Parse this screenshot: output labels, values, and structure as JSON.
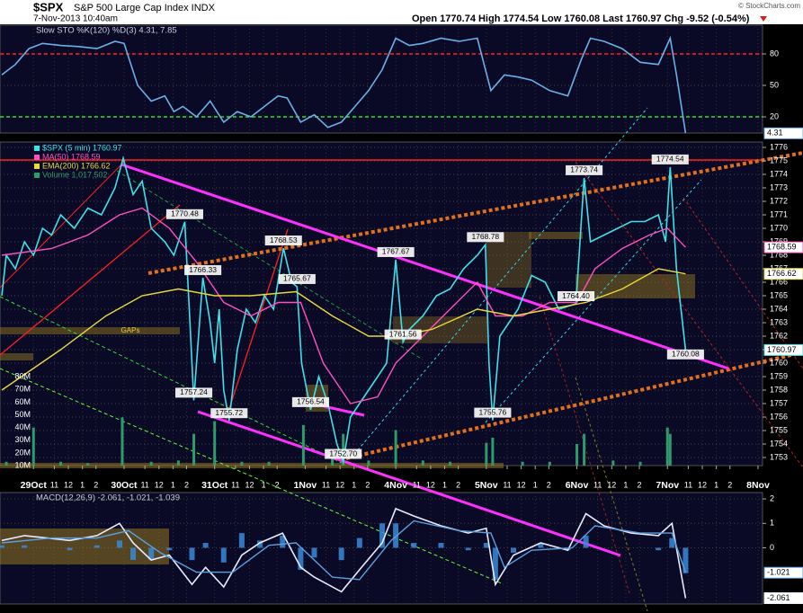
{
  "header": {
    "symbol": "$SPX",
    "name": "S&P 500 Large Cap Index INDX",
    "date": "7-Nov-2013 10:40am",
    "quote": "Open 1770.74  High 1774.54  Low 1760.08  Last 1760.97  Chg -9.52 (-0.54%)",
    "credit": "© StockCharts.com"
  },
  "chart_data": [
    {
      "type": "line",
      "legend": "Slow STO %K(120) %D(3) 4.31, 7.85",
      "xlim": [
        -0.37,
        8.05
      ],
      "ylim": [
        4.6,
        107.4
      ],
      "yticks": [
        20,
        50,
        80
      ],
      "grid": true,
      "hlines": [
        {
          "value": 80,
          "color": "#ff2020"
        },
        {
          "value": 20,
          "color": "#30e030"
        }
      ],
      "series": [
        {
          "color": "#6ab0e8",
          "x": [
            -0.35,
            -0.2,
            -0.05,
            0.1,
            0.3,
            0.5,
            0.7,
            0.9,
            1.0,
            1.15,
            1.3,
            1.45,
            1.55,
            1.65,
            1.8,
            1.95,
            2.1,
            2.25,
            2.4,
            2.55,
            2.7,
            2.8,
            2.95,
            3.1,
            3.25,
            3.4,
            3.55,
            3.7,
            3.85,
            4.0,
            4.15,
            4.3,
            4.5,
            4.7,
            4.9,
            5.05,
            5.2,
            5.35,
            5.5,
            5.7,
            5.9,
            6.05,
            6.15,
            6.3,
            6.5,
            6.7,
            6.9,
            7.03,
            7.1,
            7.2
          ],
          "values": [
            60,
            70,
            85,
            90,
            88,
            87,
            85,
            92,
            90,
            50,
            35,
            40,
            25,
            30,
            20,
            35,
            15,
            25,
            20,
            30,
            40,
            38,
            15,
            22,
            10,
            15,
            30,
            45,
            65,
            95,
            88,
            90,
            95,
            92,
            95,
            45,
            60,
            58,
            55,
            45,
            40,
            75,
            95,
            92,
            85,
            72,
            70,
            95,
            60,
            4.31
          ]
        }
      ]
    },
    {
      "type": "line",
      "xlim": [
        -0.37,
        8.05
      ],
      "ylim": [
        1752.4,
        1776.4
      ],
      "yticks": [
        1753,
        1754,
        1755,
        1756,
        1757,
        1758,
        1759,
        1760,
        1761,
        1762,
        1763,
        1764,
        1765,
        1766,
        1767,
        1768,
        1769,
        1770,
        1771,
        1772,
        1773,
        1774,
        1775,
        1776
      ],
      "grid": true,
      "xticks": [
        {
          "value": 0,
          "label": "29Oct"
        },
        {
          "value": 0.23,
          "label": "11"
        },
        {
          "value": 0.385,
          "label": "12"
        },
        {
          "value": 0.54,
          "label": "1"
        },
        {
          "value": 0.69,
          "label": "2"
        },
        {
          "value": 1,
          "label": "30Oct"
        },
        {
          "value": 1.23,
          "label": "11"
        },
        {
          "value": 1.385,
          "label": "12"
        },
        {
          "value": 1.54,
          "label": "1"
        },
        {
          "value": 1.69,
          "label": "2"
        },
        {
          "value": 2,
          "label": "31Oct"
        },
        {
          "value": 2.23,
          "label": "11"
        },
        {
          "value": 2.385,
          "label": "12"
        },
        {
          "value": 2.54,
          "label": "1"
        },
        {
          "value": 2.69,
          "label": "2"
        },
        {
          "value": 3,
          "label": "1Nov"
        },
        {
          "value": 3.23,
          "label": "11"
        },
        {
          "value": 3.385,
          "label": "12"
        },
        {
          "value": 3.54,
          "label": "1"
        },
        {
          "value": 3.69,
          "label": "2"
        },
        {
          "value": 4,
          "label": "4Nov"
        },
        {
          "value": 4.23,
          "label": "11"
        },
        {
          "value": 4.385,
          "label": "12"
        },
        {
          "value": 4.54,
          "label": "1"
        },
        {
          "value": 4.69,
          "label": "2"
        },
        {
          "value": 5,
          "label": "5Nov"
        },
        {
          "value": 5.23,
          "label": "11"
        },
        {
          "value": 5.385,
          "label": "12"
        },
        {
          "value": 5.54,
          "label": "1"
        },
        {
          "value": 5.69,
          "label": "2"
        },
        {
          "value": 6,
          "label": "6Nov"
        },
        {
          "value": 6.23,
          "label": "11"
        },
        {
          "value": 6.385,
          "label": "12"
        },
        {
          "value": 6.54,
          "label": "1"
        },
        {
          "value": 6.69,
          "label": "2"
        },
        {
          "value": 7,
          "label": "7Nov"
        },
        {
          "value": 7.23,
          "label": "11"
        },
        {
          "value": 7.385,
          "label": "12"
        },
        {
          "value": 7.54,
          "label": "1"
        },
        {
          "value": 7.69,
          "label": "2"
        },
        {
          "value": 8,
          "label": "8Nov"
        }
      ],
      "y2lim": [
        10000000,
        265000000
      ],
      "y2ticks": [
        {
          "value": 10000000,
          "label": "10M"
        },
        {
          "value": 20000000,
          "label": "20M"
        },
        {
          "value": 30000000,
          "label": "30M"
        },
        {
          "value": 40000000,
          "label": "40M"
        },
        {
          "value": 50000000,
          "label": "50M"
        },
        {
          "value": 60000000,
          "label": "60M"
        },
        {
          "value": 70000000,
          "label": "70M"
        },
        {
          "value": 80000000,
          "label": "80M"
        }
      ],
      "series": [
        {
          "name": "$SPX (5 min) 1760.97",
          "color": "#40e0e8",
          "x": [
            -0.35,
            -0.3,
            -0.2,
            -0.1,
            0,
            0.1,
            0.2,
            0.3,
            0.45,
            0.6,
            0.75,
            0.9,
            0.99,
            1.1,
            1.2,
            1.3,
            1.45,
            1.55,
            1.67,
            1.72,
            1.77,
            1.87,
            1.95,
            2.0,
            2.05,
            2.1,
            2.16,
            2.25,
            2.35,
            2.45,
            2.55,
            2.65,
            2.76,
            2.85,
            2.91,
            2.96,
            3.06,
            3.15,
            3.25,
            3.35,
            3.42,
            3.5,
            3.6,
            3.7,
            3.8,
            3.9,
            4.0,
            4.08,
            4.15,
            4.3,
            4.45,
            4.6,
            4.75,
            4.9,
            4.99,
            5.03,
            5.07,
            5.15,
            5.25,
            5.35,
            5.5,
            5.65,
            5.8,
            5.99,
            6.08,
            6.15,
            6.3,
            6.45,
            6.6,
            6.75,
            6.9,
            6.98,
            7.03,
            7.1,
            7.2
          ],
          "values": [
            1765,
            1768,
            1767,
            1769,
            1768,
            1770,
            1769.5,
            1771,
            1770,
            1771.5,
            1771,
            1773,
            1775.2,
            1772.5,
            1773.5,
            1770,
            1769,
            1768,
            1770.48,
            1764,
            1757.24,
            1766.33,
            1763,
            1760,
            1764,
            1758,
            1755.72,
            1761,
            1764,
            1763,
            1765,
            1764,
            1768.53,
            1766,
            1765.67,
            1760,
            1756.54,
            1759,
            1757,
            1754,
            1752.7,
            1756,
            1757,
            1758,
            1759,
            1760,
            1767.67,
            1761.56,
            1762.5,
            1763.5,
            1765,
            1765.5,
            1767,
            1768,
            1768.78,
            1760,
            1755.76,
            1762,
            1763,
            1764,
            1766.5,
            1766,
            1764,
            1764.4,
            1773.74,
            1769,
            1769.5,
            1770,
            1770.5,
            1770.5,
            1771,
            1769,
            1774.54,
            1767,
            1760.97
          ]
        },
        {
          "name": "MA(50) 1768.59",
          "color": "#ff50c0",
          "x": [
            -0.35,
            0.2,
            0.6,
            0.95,
            1.2,
            1.5,
            1.8,
            2.1,
            2.4,
            2.7,
            2.95,
            3.2,
            3.5,
            3.8,
            4.0,
            4.3,
            4.6,
            4.9,
            5.1,
            5.4,
            5.7,
            6.0,
            6.2,
            6.5,
            6.8,
            7.0,
            7.2
          ],
          "values": [
            1768,
            1768.5,
            1769.5,
            1771,
            1771.5,
            1770,
            1767.5,
            1764.5,
            1763.5,
            1764.5,
            1764.5,
            1760,
            1757,
            1757.5,
            1760,
            1762,
            1764,
            1766,
            1763.5,
            1763.5,
            1764.5,
            1764.5,
            1767,
            1768.5,
            1769.5,
            1770,
            1768.59
          ]
        },
        {
          "name": "EMA(200) 1766.62",
          "color": "#e8d840",
          "x": [
            -0.35,
            0.3,
            0.8,
            1.2,
            1.6,
            2.0,
            2.4,
            2.9,
            3.3,
            3.7,
            4.0,
            4.4,
            4.9,
            5.3,
            5.7,
            6.1,
            6.5,
            6.9,
            7.2
          ],
          "values": [
            1758,
            1761,
            1763.5,
            1765,
            1765.5,
            1765,
            1765,
            1765.3,
            1763.5,
            1762,
            1762,
            1762.5,
            1764,
            1763.5,
            1764,
            1764.5,
            1765.5,
            1767,
            1766.62
          ]
        },
        {
          "name": "Volume 1,017,502",
          "color": "#2f9a6a",
          "axis": "y2",
          "x": [
            -0.3,
            0,
            0.3,
            0.6,
            0.98,
            1.3,
            1.6,
            1.77,
            2,
            2.3,
            2.6,
            2.98,
            3.3,
            3.42,
            3.7,
            4,
            4.3,
            4.6,
            5,
            5.07,
            5.4,
            5.7,
            6,
            6.08,
            6.4,
            6.7,
            7,
            7.03,
            7.2
          ],
          "values": [
            13000000,
            40000000,
            13000000,
            12000000,
            48000000,
            13000000,
            14000000,
            35000000,
            45000000,
            13000000,
            13000000,
            42000000,
            16000000,
            35000000,
            14000000,
            38000000,
            14000000,
            13000000,
            28000000,
            32000000,
            13000000,
            13000000,
            27000000,
            35000000,
            14000000,
            13000000,
            40000000,
            35000000,
            1017502
          ]
        }
      ],
      "annotations": [
        {
          "x": 1.67,
          "y": 1770.48,
          "text": "1770.48"
        },
        {
          "x": 1.87,
          "y": 1766.33,
          "text": "1766.33"
        },
        {
          "x": 1.77,
          "y": 1757.24,
          "text": "1757.24"
        },
        {
          "x": 2.16,
          "y": 1755.72,
          "text": "1755.72"
        },
        {
          "x": 2.76,
          "y": 1768.53,
          "text": "1768.53"
        },
        {
          "x": 2.91,
          "y": 1765.67,
          "text": "1765.67"
        },
        {
          "x": 3.06,
          "y": 1756.54,
          "text": "1756.54"
        },
        {
          "x": 3.42,
          "y": 1752.7,
          "text": "1752.70"
        },
        {
          "x": 4.0,
          "y": 1767.67,
          "text": "1767.67"
        },
        {
          "x": 4.08,
          "y": 1761.56,
          "text": "1761.56"
        },
        {
          "x": 4.99,
          "y": 1768.78,
          "text": "1768.78"
        },
        {
          "x": 5.07,
          "y": 1755.76,
          "text": "1755.76"
        },
        {
          "x": 5.99,
          "y": 1764.4,
          "text": "1764.40"
        },
        {
          "x": 6.08,
          "y": 1773.74,
          "text": "1773.74"
        },
        {
          "x": 7.03,
          "y": 1774.54,
          "text": "1774.54"
        },
        {
          "x": 7.2,
          "y": 1760.08,
          "text": "1760.08"
        },
        {
          "x": 1.07,
          "y": 1762.4,
          "text": "GAPs",
          "color": "#e8c840"
        }
      ]
    },
    {
      "type": "line",
      "legend": "MACD(12,26,9) -2.061, -1.021, -1.039",
      "xlim": [
        -0.37,
        8.05
      ],
      "ylim": [
        -2.3,
        2.26
      ],
      "yticks": [
        0,
        1,
        2
      ],
      "grid": true,
      "series": [
        {
          "color": "#e8ecff",
          "x": [
            -0.35,
            -0.1,
            0.15,
            0.4,
            0.7,
            0.95,
            1.1,
            1.3,
            1.5,
            1.75,
            1.9,
            2.1,
            2.3,
            2.5,
            2.75,
            2.95,
            3.1,
            3.4,
            3.6,
            3.85,
            4.0,
            4.2,
            4.5,
            4.8,
            5.0,
            5.1,
            5.3,
            5.6,
            5.9,
            6.1,
            6.3,
            6.6,
            6.9,
            7.05,
            7.2
          ],
          "values": [
            0.3,
            0.5,
            0.4,
            0.3,
            0.5,
            1.0,
            0.2,
            -0.5,
            -0.3,
            -1.5,
            -0.8,
            -1.6,
            -0.3,
            0.2,
            0.6,
            -0.8,
            -1.2,
            -1.8,
            -0.9,
            0.2,
            1.6,
            1.3,
            0.9,
            0.6,
            0.8,
            -1.5,
            -0.3,
            0.2,
            -0.1,
            1.4,
            0.9,
            0.6,
            0.5,
            1.0,
            -2.061
          ]
        },
        {
          "color": "#5aa0e0",
          "x": [
            -0.35,
            0.2,
            0.7,
            1.05,
            1.4,
            1.8,
            2.2,
            2.6,
            2.9,
            3.3,
            3.6,
            3.95,
            4.2,
            4.7,
            5.05,
            5.2,
            5.5,
            5.95,
            6.2,
            6.7,
            7.05,
            7.2
          ],
          "values": [
            0.2,
            0.4,
            0.4,
            0.7,
            -0.2,
            -1.0,
            -1.0,
            0.1,
            0.2,
            -1.2,
            -1.3,
            0.3,
            1.1,
            0.7,
            0.6,
            -0.8,
            -0.1,
            0.0,
            0.9,
            0.6,
            0.6,
            -1.021
          ]
        },
        {
          "color": "#3a8ad8",
          "style": "histogram",
          "x": [
            -0.35,
            -0.1,
            0.15,
            0.4,
            0.7,
            0.95,
            1.1,
            1.3,
            1.5,
            1.75,
            1.9,
            2.1,
            2.3,
            2.5,
            2.75,
            2.95,
            3.1,
            3.4,
            3.6,
            3.85,
            4.0,
            4.2,
            4.5,
            4.8,
            5.0,
            5.1,
            5.3,
            5.6,
            5.9,
            6.1,
            6.3,
            6.6,
            6.9,
            7.05,
            7.2
          ],
          "values": [
            0.1,
            0.1,
            0,
            -0.1,
            0.1,
            0.3,
            -0.5,
            -0.5,
            -0.1,
            -0.5,
            0.2,
            -0.6,
            0.6,
            0.3,
            0.5,
            -0.9,
            -0.4,
            -0.5,
            0.4,
            1.0,
            1.0,
            0.2,
            0.2,
            -0.1,
            0.2,
            -1.3,
            -0.2,
            0.2,
            -0.1,
            0.5,
            0,
            0,
            -0.1,
            0.4,
            -1.039
          ]
        }
      ]
    }
  ]
}
